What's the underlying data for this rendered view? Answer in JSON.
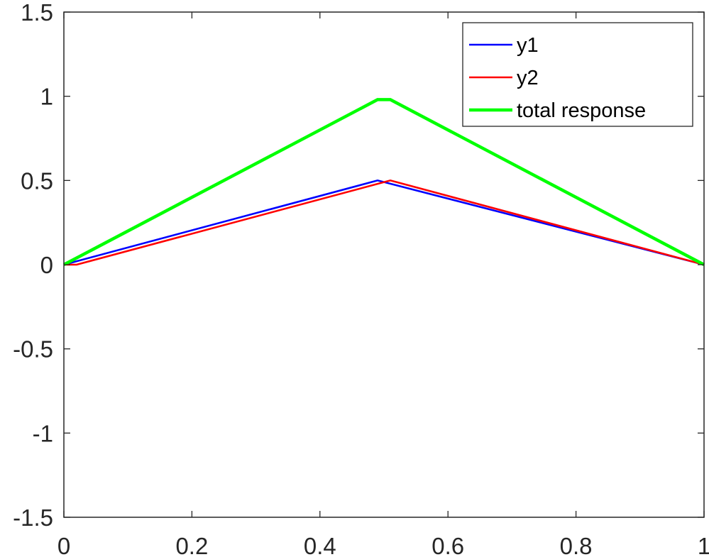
{
  "chart_data": {
    "type": "line",
    "title": "",
    "xlabel": "",
    "ylabel": "",
    "xlim": [
      0,
      1
    ],
    "ylim": [
      -1.5,
      1.5
    ],
    "xticks": [
      "0",
      "0.2",
      "0.4",
      "0.6",
      "0.8",
      "1"
    ],
    "yticks": [
      "-1.5",
      "-1",
      "-0.5",
      "0",
      "0.5",
      "1",
      "1.5"
    ],
    "grid": false,
    "legend_position": "top-right",
    "series": [
      {
        "name": "y1",
        "color": "#0000ff",
        "x": [
          0,
          0.49,
          1
        ],
        "y": [
          0,
          0.5,
          0
        ]
      },
      {
        "name": "y2",
        "color": "#ff0000",
        "x": [
          0,
          0.02,
          0.51,
          1
        ],
        "y": [
          0,
          0,
          0.5,
          0
        ]
      },
      {
        "name": "total response",
        "color": "#00ff00",
        "x": [
          0,
          0.49,
          0.51,
          1
        ],
        "y": [
          0,
          0.98,
          0.98,
          0
        ]
      }
    ]
  }
}
